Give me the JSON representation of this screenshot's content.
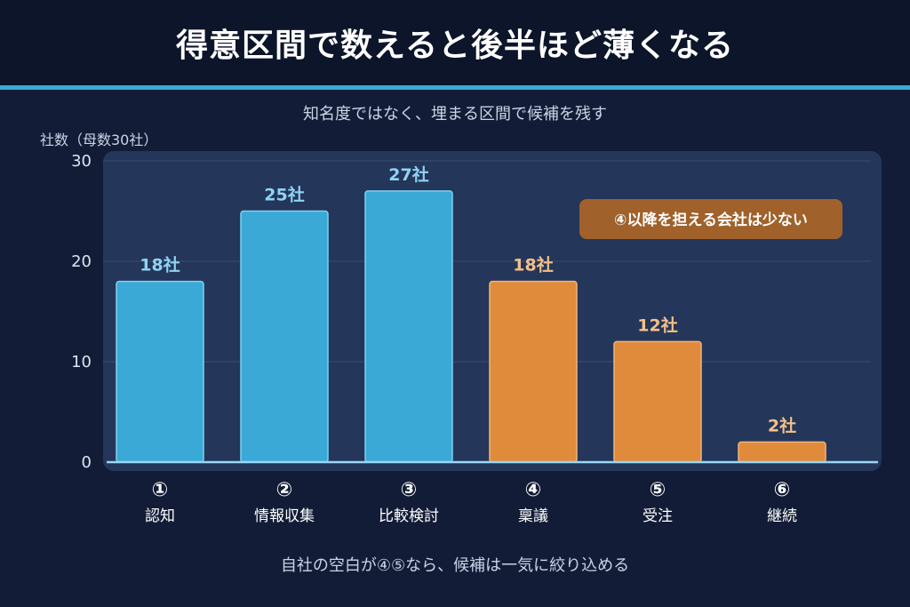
{
  "title": "得意区間で数えると後半ほど薄くなる",
  "subtitle": "知名度ではなく、埋まる区間で候補を残す",
  "footer": "自社の空白が④⑤なら、候補は一気に絞り込める",
  "colors": {
    "blue": "#3aa9d6",
    "orange": "#e08a3c",
    "blue_label": "#8fd3f4",
    "orange_label": "#f4c08a",
    "callout_bg": "#a0612a",
    "panel": "#243659"
  },
  "chart_data": {
    "type": "bar",
    "ylabel": "社数（母数30社）",
    "ylim": [
      0,
      30
    ],
    "yticks": [
      0,
      10,
      20,
      30
    ],
    "grid": true,
    "categories": [
      {
        "num": "①",
        "label": "認知"
      },
      {
        "num": "②",
        "label": "情報収集"
      },
      {
        "num": "③",
        "label": "比較検討"
      },
      {
        "num": "④",
        "label": "稟議"
      },
      {
        "num": "⑤",
        "label": "受注"
      },
      {
        "num": "⑥",
        "label": "継続"
      }
    ],
    "values": [
      18,
      25,
      27,
      18,
      12,
      2
    ],
    "value_labels": [
      "18社",
      "25社",
      "27社",
      "18社",
      "12社",
      "2社"
    ],
    "bar_colors": [
      "blue",
      "blue",
      "blue",
      "orange",
      "orange",
      "orange"
    ],
    "annotation": "④以降を担える会社は少ない"
  }
}
